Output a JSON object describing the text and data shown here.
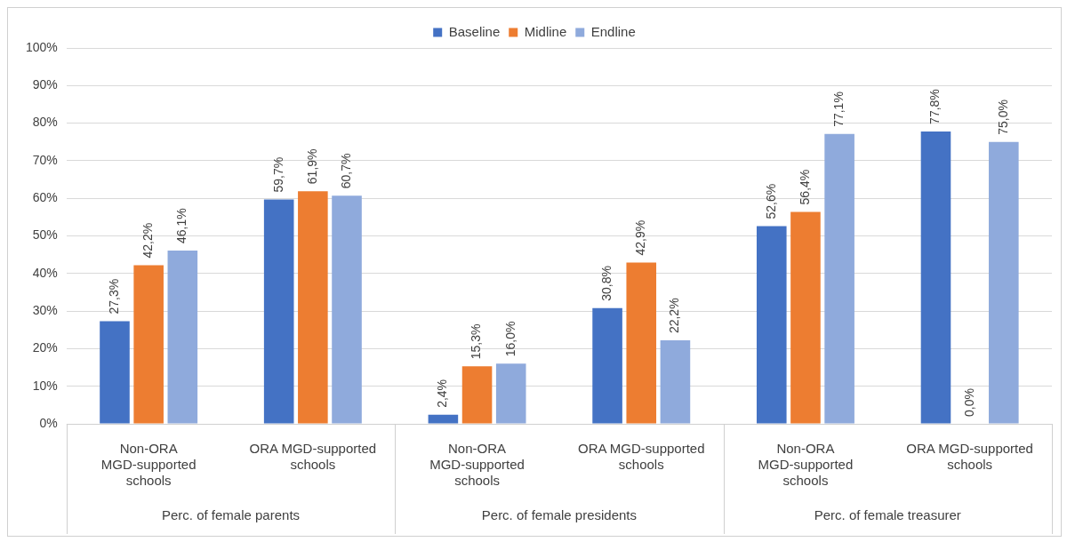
{
  "chart_data": {
    "type": "bar",
    "categories": [
      "Non-ORA MGD-supported schools",
      "ORA MGD-supported schools",
      "Non-ORA MGD-supported schools",
      "ORA MGD-supported schools",
      "Non-ORA MGD-supported schools",
      "ORA MGD-supported schools"
    ],
    "series": [
      {
        "name": "Baseline",
        "color": "#4472c4",
        "values": [
          27.3,
          59.7,
          2.4,
          30.8,
          52.6,
          77.8
        ],
        "value_labels": [
          "27,3%",
          "59,7%",
          "2,4%",
          "30,8%",
          "52,6%",
          "77,8%"
        ]
      },
      {
        "name": "Midline",
        "color": "#ed7d31",
        "values": [
          42.2,
          61.9,
          15.3,
          42.9,
          56.4,
          0.0
        ],
        "value_labels": [
          "42,2%",
          "61,9%",
          "15,3%",
          "42,9%",
          "56,4%",
          "0,0%"
        ]
      },
      {
        "name": "Endline",
        "color": "#8faadc",
        "values": [
          46.1,
          60.7,
          16.0,
          22.2,
          77.1,
          75.0
        ],
        "value_labels": [
          "46,1%",
          "60,7%",
          "16,0%",
          "22,2%",
          "77,1%",
          "75,0%"
        ]
      }
    ],
    "annotations": [
      "Perc. of female parents",
      "Perc. of female presidents",
      "Perc. of female treasurer"
    ],
    "ylim": [
      0,
      100
    ],
    "yticks": [
      {
        "value": 0,
        "label": "0%"
      },
      {
        "value": 10,
        "label": "10%"
      },
      {
        "value": 20,
        "label": "20%"
      },
      {
        "value": 30,
        "label": "30%"
      },
      {
        "value": 40,
        "label": "40%"
      },
      {
        "value": 50,
        "label": "50%"
      },
      {
        "value": 60,
        "label": "60%"
      },
      {
        "value": 70,
        "label": "70%"
      },
      {
        "value": 80,
        "label": "80%"
      },
      {
        "value": 90,
        "label": "90%"
      },
      {
        "value": 100,
        "label": "100%"
      }
    ],
    "grid": "y",
    "legend": "top"
  }
}
